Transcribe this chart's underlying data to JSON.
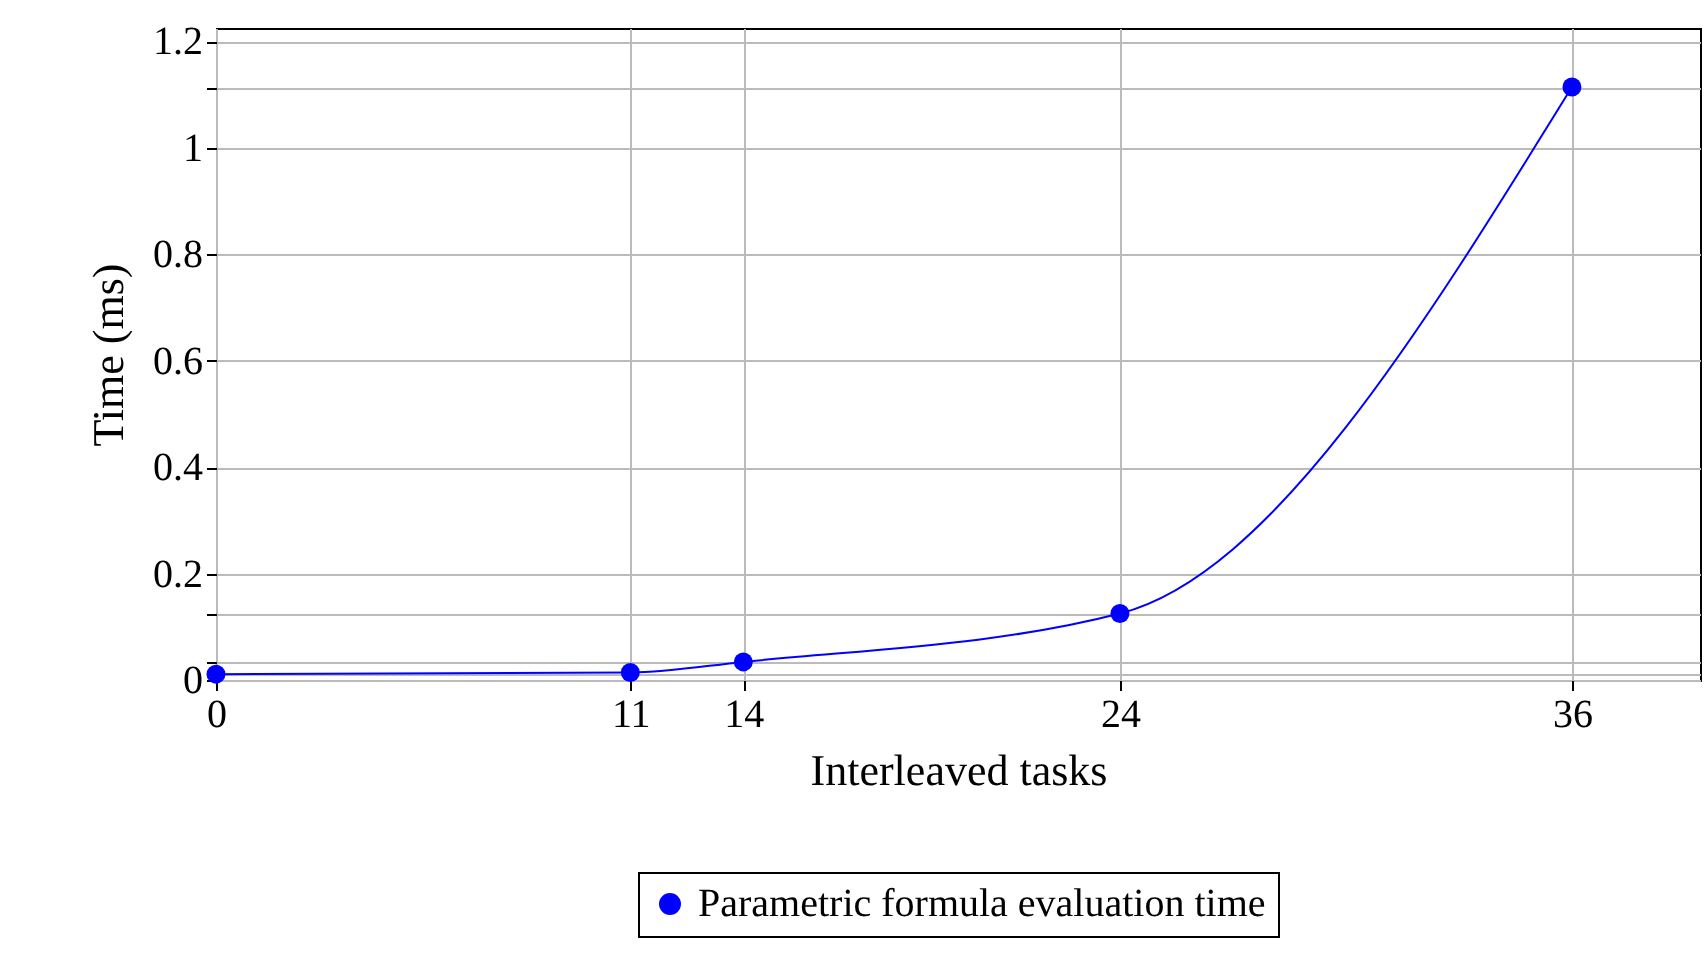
{
  "chart_data": {
    "type": "line",
    "xlabel": "Interleaved tasks",
    "ylabel": "Time (ms)",
    "x": [
      0,
      11,
      14,
      24,
      36
    ],
    "series": [
      {
        "name": "Parametric formula evaluation time",
        "color": "#0000ff",
        "values": [
          0.011,
          0.014,
          0.034,
          0.125,
          1.114
        ]
      }
    ],
    "xlim": [
      0,
      39.4
    ],
    "xticks": [
      0,
      11,
      14,
      24,
      36
    ],
    "ylim": [
      0,
      1.225
    ],
    "yticks": [
      0,
      0.2,
      0.4,
      0.6,
      0.8,
      1,
      1.2,
      {
        "value": 0.011,
        "label": null
      },
      {
        "value": 0.034,
        "label": null
      },
      {
        "value": 0.125,
        "label": null
      },
      {
        "value": 1.114,
        "label": null
      }
    ],
    "grid": true,
    "legend": "bottom",
    "marker": "circle",
    "line_style": "solid"
  }
}
